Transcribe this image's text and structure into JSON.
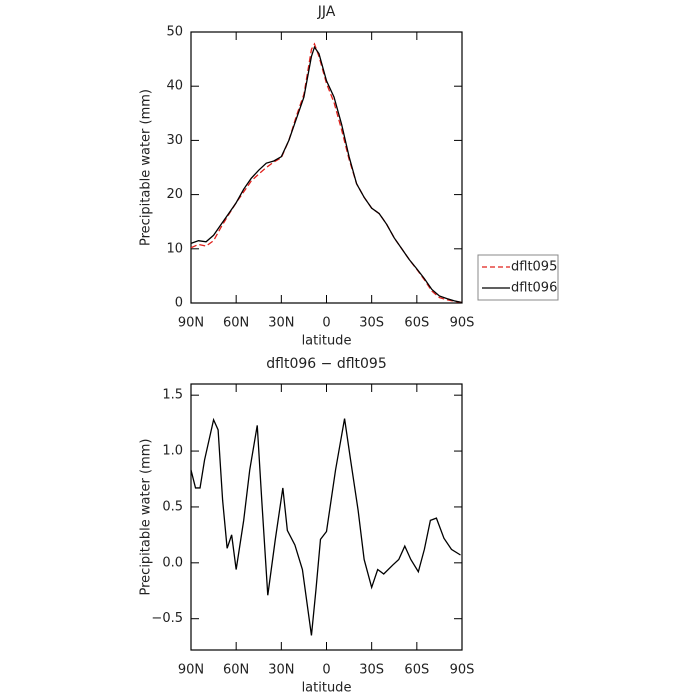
{
  "chart_data": [
    {
      "type": "line",
      "title": "JJA",
      "xlabel": "latitude",
      "ylabel": "Precipitable water (mm)",
      "x": [
        90,
        85,
        80,
        75,
        70,
        65,
        60,
        55,
        50,
        45,
        40,
        35,
        30,
        25,
        20,
        15,
        10,
        8,
        5,
        0,
        -5,
        -10,
        -15,
        -20,
        -25,
        -30,
        -35,
        -40,
        -45,
        -50,
        -55,
        -60,
        -65,
        -70,
        -75,
        -80,
        -85,
        -90
      ],
      "series": [
        {
          "name": "dflt095",
          "color": "#e0201b",
          "linestyle": "dashed",
          "values": [
            10.2,
            10.8,
            10.5,
            11.5,
            14,
            16.3,
            18.5,
            20.5,
            22.5,
            23.8,
            25,
            26,
            26.8,
            30,
            34.5,
            38.5,
            46.8,
            47.8,
            45.5,
            40.5,
            37,
            32,
            26.5,
            22,
            19.5,
            17.5,
            16.5,
            14.5,
            12,
            10,
            8,
            6.2,
            4.3,
            2.2,
            1.0,
            0.6,
            0.3,
            0.1
          ]
        },
        {
          "name": "dflt096",
          "color": "#000000",
          "linestyle": "solid",
          "values": [
            11.0,
            11.5,
            11.3,
            12.5,
            14.5,
            16.5,
            18.5,
            21,
            23,
            24.5,
            25.8,
            26.2,
            27,
            30,
            34,
            38,
            45.5,
            47.2,
            46,
            41,
            38,
            33,
            27,
            22,
            19.5,
            17.5,
            16.5,
            14.5,
            12,
            10,
            8,
            6.3,
            4.5,
            2.5,
            1.3,
            0.8,
            0.4,
            0.1
          ]
        }
      ],
      "xlim": [
        90,
        -90
      ],
      "xticks": [
        {
          "value": 90,
          "label": "90N"
        },
        {
          "value": 60,
          "label": "60N"
        },
        {
          "value": 30,
          "label": "30N"
        },
        0,
        {
          "value": -30,
          "label": "30S"
        },
        {
          "value": -60,
          "label": "60S"
        },
        {
          "value": -90,
          "label": "90S"
        }
      ],
      "ylim": [
        0,
        50
      ],
      "yticks": [
        0,
        10,
        20,
        30,
        40,
        50
      ],
      "legend": "right"
    },
    {
      "type": "line",
      "title": "dflt096 − dflt095",
      "xlabel": "latitude",
      "ylabel": "Precipitable water (mm)",
      "x": [
        90,
        87,
        84,
        81,
        75,
        72,
        69,
        66,
        63,
        60,
        55,
        51,
        46,
        43,
        39,
        34,
        29,
        26,
        21,
        16,
        10,
        7,
        4,
        0,
        -6,
        -12,
        -16,
        -21,
        -25,
        -30,
        -34,
        -38,
        -44,
        -48,
        -52,
        -56,
        -61,
        -65,
        -69,
        -73,
        -78,
        -83,
        -89
      ],
      "series": [
        {
          "name": "dflt096 − dflt095",
          "color": "#000000",
          "linestyle": "solid",
          "values": [
            0.83,
            0.67,
            0.67,
            0.92,
            1.28,
            1.19,
            0.56,
            0.13,
            0.25,
            -0.06,
            0.38,
            0.83,
            1.23,
            0.56,
            -0.29,
            0.21,
            0.67,
            0.29,
            0.16,
            -0.06,
            -0.65,
            -0.24,
            0.21,
            0.28,
            0.83,
            1.29,
            0.92,
            0.47,
            0.03,
            -0.22,
            -0.06,
            -0.1,
            -0.02,
            0.03,
            0.15,
            0.03,
            -0.08,
            0.12,
            0.38,
            0.4,
            0.22,
            0.12,
            0.07
          ]
        }
      ],
      "xlim": [
        90,
        -90
      ],
      "xticks": [
        {
          "value": 90,
          "label": "90N"
        },
        {
          "value": 60,
          "label": "60N"
        },
        {
          "value": 30,
          "label": "30N"
        },
        0,
        {
          "value": -30,
          "label": "30S"
        },
        {
          "value": -60,
          "label": "60S"
        },
        {
          "value": -90,
          "label": "90S"
        }
      ],
      "ylim": [
        -0.78,
        1.6
      ],
      "yticks": [
        {
          "value": -0.5,
          "label": "−0.5"
        },
        {
          "value": 0,
          "label": "0.0"
        },
        0.5,
        {
          "value": 1,
          "label": "1.0"
        },
        1.5
      ]
    }
  ]
}
